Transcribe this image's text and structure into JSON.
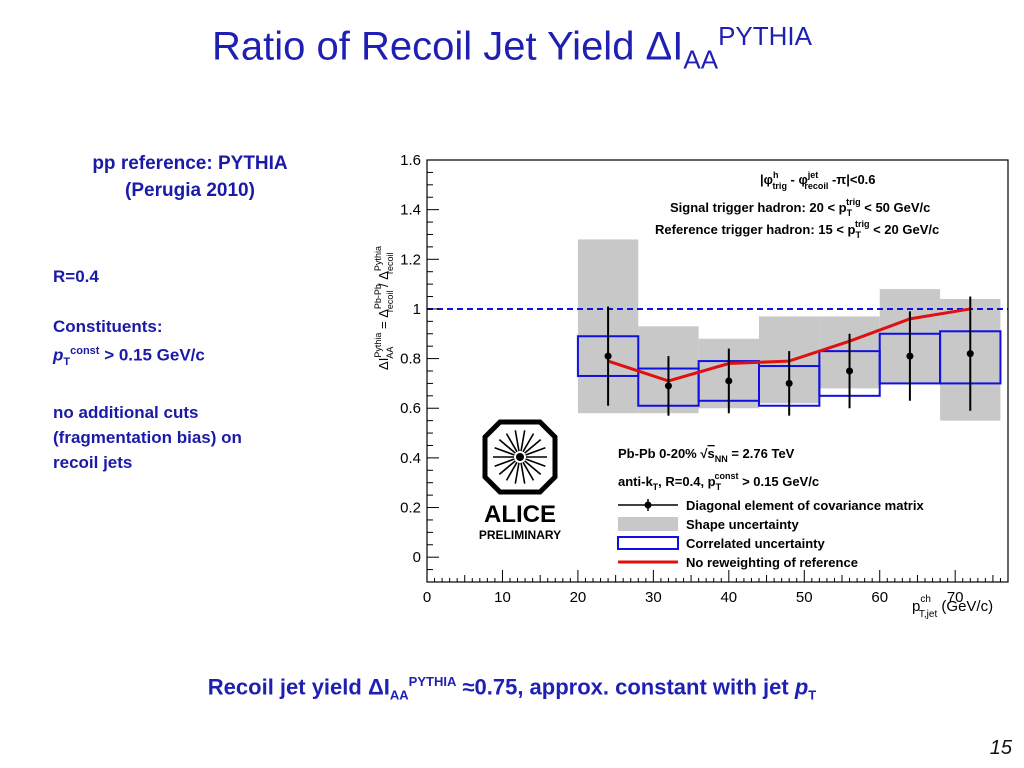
{
  "slide": {
    "title_main": "Ratio of Recoil Jet Yield  ΔI",
    "title_sub": "AA",
    "title_sup": "PYTHIA",
    "pp_ref_line1": "pp reference: PYTHIA",
    "pp_ref_line2": "(Perugia 2010)",
    "r_value": "R=0.4",
    "constituents_label": "Constituents:",
    "pt_symbol": "p",
    "pt_sub": "T",
    "pt_sup": "const",
    "pt_cut": " > 0.15 GeV/c",
    "cuts_line1": "no additional cuts",
    "cuts_line2": "(fragmentation bias) on",
    "cuts_line3": "recoil jets",
    "summary_a": "Recoil jet yield  ΔI",
    "summary_sub": "AA",
    "summary_sup": "PYTHIA",
    "summary_b": " ≈0.75, approx. constant with jet ",
    "summary_p": "p",
    "summary_t": "T",
    "page_number": "15"
  },
  "logo": {
    "name": "ALICE",
    "sub": "PRELIMINARY"
  },
  "colors": {
    "title": "#1f1fb4",
    "shape_band": "#c8c8c8",
    "correlated_box": "#1010e0",
    "no_reweight_line": "#e01010",
    "reference_line": "#1010e0"
  },
  "chart_data": {
    "type": "scatter",
    "xlabel_main": "p",
    "xlabel_sup": "ch",
    "xlabel_sub": "T,jet",
    "xlabel_unit": " (GeV/c)",
    "ylabel": "ΔI_AA^Pythia = Δ_recoil^Pb-Pb / Δ_recoil^Pythia",
    "xlim": [
      0,
      77
    ],
    "ylim": [
      -0.1,
      1.6
    ],
    "x_ticks": [
      "0",
      "10",
      "20",
      "30",
      "40",
      "50",
      "60",
      "70"
    ],
    "y_ticks": [
      "0",
      "0.2",
      "0.4",
      "0.6",
      "0.8",
      "1",
      "1.2",
      "1.4",
      "1.6"
    ],
    "reference_y": 1.0,
    "bins": [
      {
        "xlo": 20,
        "xhi": 28,
        "x": 24,
        "y": 0.81,
        "stat": 0.2,
        "shape_lo": 0.58,
        "shape_hi": 1.28,
        "corr_lo": 0.73,
        "corr_hi": 0.89
      },
      {
        "xlo": 28,
        "xhi": 36,
        "x": 32,
        "y": 0.69,
        "stat": 0.12,
        "shape_lo": 0.58,
        "shape_hi": 0.93,
        "corr_lo": 0.61,
        "corr_hi": 0.76
      },
      {
        "xlo": 36,
        "xhi": 44,
        "x": 40,
        "y": 0.71,
        "stat": 0.13,
        "shape_lo": 0.6,
        "shape_hi": 0.88,
        "corr_lo": 0.63,
        "corr_hi": 0.79
      },
      {
        "xlo": 44,
        "xhi": 52,
        "x": 48,
        "y": 0.7,
        "stat": 0.13,
        "shape_lo": 0.62,
        "shape_hi": 0.97,
        "corr_lo": 0.61,
        "corr_hi": 0.77
      },
      {
        "xlo": 52,
        "xhi": 60,
        "x": 56,
        "y": 0.75,
        "stat": 0.15,
        "shape_lo": 0.68,
        "shape_hi": 0.97,
        "corr_lo": 0.65,
        "corr_hi": 0.83
      },
      {
        "xlo": 60,
        "xhi": 68,
        "x": 64,
        "y": 0.81,
        "stat": 0.18,
        "shape_lo": 0.7,
        "shape_hi": 1.08,
        "corr_lo": 0.7,
        "corr_hi": 0.9
      },
      {
        "xlo": 68,
        "xhi": 76,
        "x": 72,
        "y": 0.82,
        "stat": 0.23,
        "shape_lo": 0.55,
        "shape_hi": 1.04,
        "corr_lo": 0.7,
        "corr_hi": 0.91
      }
    ],
    "no_reweighting_line": {
      "x": [
        24,
        32,
        40,
        48,
        56,
        64,
        72
      ],
      "y": [
        0.79,
        0.71,
        0.78,
        0.79,
        0.87,
        0.96,
        1.0
      ]
    },
    "annotations": {
      "delta_phi": "|φ^h_trig - φ^jet_recoil - π|<0.6",
      "signal_trigger": "Signal trigger hadron: 20 < p_T^trig < 50 GeV/c",
      "reference_trigger": "Reference trigger hadron: 15 < p_T^trig < 20 GeV/c",
      "collision": "Pb-Pb 0-20% √s_NN = 2.76 TeV",
      "jet_def": "anti-k_T, R=0.4, p_T^const > 0.15 GeV/c"
    },
    "legend": [
      {
        "label": "Diagonal element of covariance matrix",
        "style": "marker"
      },
      {
        "label": "Shape uncertainty",
        "style": "band"
      },
      {
        "label": "Correlated uncertainty",
        "style": "box"
      },
      {
        "label": "No reweighting of reference",
        "style": "line"
      }
    ],
    "legend_position": "bottom-right"
  }
}
